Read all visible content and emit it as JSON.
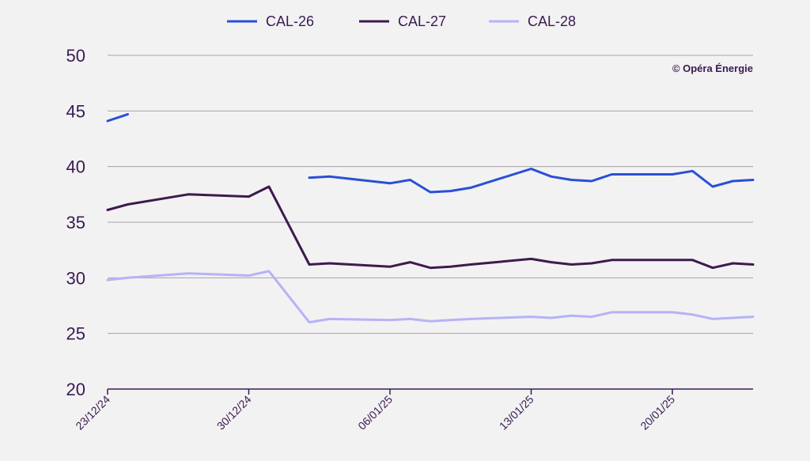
{
  "chart_data": {
    "type": "line",
    "title": "",
    "xlabel": "",
    "ylabel": "",
    "ylim": [
      20,
      50
    ],
    "yticks": [
      20,
      25,
      30,
      35,
      40,
      45,
      50
    ],
    "x_range": [
      "2024-12-23",
      "2025-01-24"
    ],
    "xticks": [
      {
        "date": "2024-12-23",
        "label": "23/12/24"
      },
      {
        "date": "2024-12-30",
        "label": "30/12/24"
      },
      {
        "date": "2025-01-06",
        "label": "06/01/25"
      },
      {
        "date": "2025-01-13",
        "label": "13/01/25"
      },
      {
        "date": "2025-01-20",
        "label": "20/01/25"
      }
    ],
    "grid": true,
    "legend_position": "top-center",
    "credit": "© Opéra Énergie",
    "series": [
      {
        "name": "CAL-26",
        "color": "#2a4fd6",
        "points": [
          [
            "2024-12-23",
            44.1
          ],
          [
            "2024-12-24",
            44.7
          ],
          null,
          [
            "2025-01-02",
            39.0
          ],
          [
            "2025-01-03",
            39.1
          ],
          [
            "2025-01-06",
            38.5
          ],
          [
            "2025-01-07",
            38.8
          ],
          [
            "2025-01-08",
            37.7
          ],
          [
            "2025-01-09",
            37.8
          ],
          [
            "2025-01-10",
            38.1
          ],
          [
            "2025-01-13",
            39.8
          ],
          [
            "2025-01-14",
            39.1
          ],
          [
            "2025-01-15",
            38.8
          ],
          [
            "2025-01-16",
            38.7
          ],
          [
            "2025-01-17",
            39.3
          ],
          [
            "2025-01-20",
            39.3
          ],
          [
            "2025-01-21",
            39.6
          ],
          [
            "2025-01-22",
            38.2
          ],
          [
            "2025-01-23",
            38.7
          ],
          [
            "2025-01-24",
            38.8
          ]
        ]
      },
      {
        "name": "CAL-27",
        "color": "#3d1a4f",
        "points": [
          [
            "2024-12-23",
            36.1
          ],
          [
            "2024-12-24",
            36.6
          ],
          [
            "2024-12-27",
            37.5
          ],
          [
            "2024-12-30",
            37.3
          ],
          [
            "2024-12-31",
            38.2
          ],
          [
            "2025-01-02",
            31.2
          ],
          [
            "2025-01-03",
            31.3
          ],
          [
            "2025-01-06",
            31.0
          ],
          [
            "2025-01-07",
            31.4
          ],
          [
            "2025-01-08",
            30.9
          ],
          [
            "2025-01-09",
            31.0
          ],
          [
            "2025-01-10",
            31.2
          ],
          [
            "2025-01-13",
            31.7
          ],
          [
            "2025-01-14",
            31.4
          ],
          [
            "2025-01-15",
            31.2
          ],
          [
            "2025-01-16",
            31.3
          ],
          [
            "2025-01-17",
            31.6
          ],
          [
            "2025-01-20",
            31.6
          ],
          [
            "2025-01-21",
            31.6
          ],
          [
            "2025-01-22",
            30.9
          ],
          [
            "2025-01-23",
            31.3
          ],
          [
            "2025-01-24",
            31.2
          ]
        ]
      },
      {
        "name": "CAL-28",
        "color": "#b6b3f7",
        "points": [
          [
            "2024-12-23",
            29.8
          ],
          [
            "2024-12-24",
            30.0
          ],
          [
            "2024-12-27",
            30.4
          ],
          [
            "2024-12-30",
            30.2
          ],
          [
            "2024-12-31",
            30.6
          ],
          [
            "2025-01-02",
            26.0
          ],
          [
            "2025-01-03",
            26.3
          ],
          [
            "2025-01-06",
            26.2
          ],
          [
            "2025-01-07",
            26.3
          ],
          [
            "2025-01-08",
            26.1
          ],
          [
            "2025-01-09",
            26.2
          ],
          [
            "2025-01-10",
            26.3
          ],
          [
            "2025-01-13",
            26.5
          ],
          [
            "2025-01-14",
            26.4
          ],
          [
            "2025-01-15",
            26.6
          ],
          [
            "2025-01-16",
            26.5
          ],
          [
            "2025-01-17",
            26.9
          ],
          [
            "2025-01-20",
            26.9
          ],
          [
            "2025-01-21",
            26.7
          ],
          [
            "2025-01-22",
            26.3
          ],
          [
            "2025-01-23",
            26.4
          ],
          [
            "2025-01-24",
            26.5
          ]
        ]
      }
    ]
  }
}
